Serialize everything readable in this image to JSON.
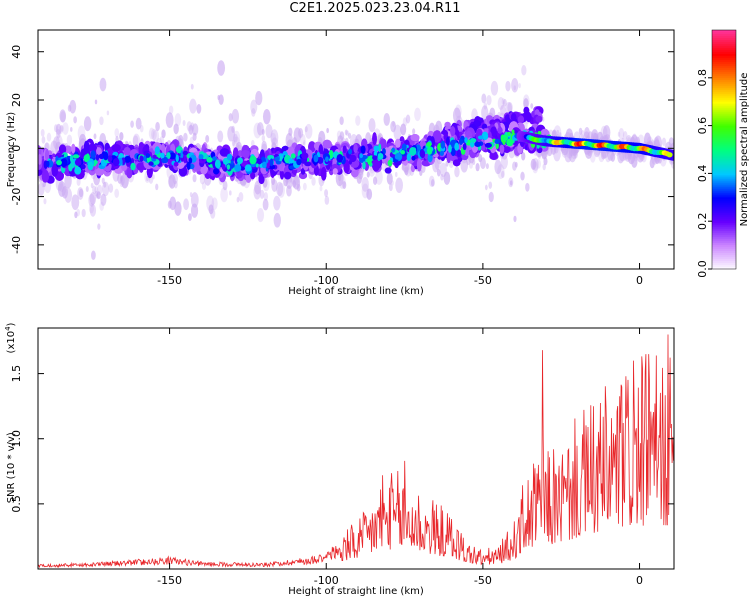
{
  "title": "C2E1.2025.023.23.04.R11",
  "chart_data": [
    {
      "type": "heatmap",
      "xlabel": "Height of straight line (km)",
      "ylabel": "Frequency (Hz)",
      "xlim": [
        -192,
        11
      ],
      "ylim": [
        -50,
        49
      ],
      "x_ticks": [
        -150,
        -100,
        -50,
        0
      ],
      "x_tick_labels": [
        "-150",
        "-100",
        "-50",
        "0"
      ],
      "y_ticks": [
        -40,
        -20,
        0,
        20,
        40
      ],
      "y_tick_labels": [
        "-40",
        "-20",
        "0",
        "20",
        "40"
      ],
      "colorbar": {
        "label": "Normalized spectral amplitude",
        "range": [
          0,
          1
        ],
        "ticks": [
          0.0,
          0.2,
          0.4,
          0.6,
          0.8
        ],
        "tick_labels": [
          "0.0",
          "0.2",
          "0.4",
          "0.6",
          "0.8"
        ],
        "colors": [
          "#ffffff",
          "#cc88ff",
          "#6600ff",
          "#0000ff",
          "#00c8ff",
          "#00ff80",
          "#40ff00",
          "#ffff00",
          "#ff8000",
          "#ff0000",
          "#ff3399"
        ]
      },
      "ridge": {
        "x": [
          -192,
          -170,
          -150,
          -130,
          -110,
          -90,
          -70,
          -50,
          -38,
          -30,
          -20,
          -10,
          0,
          11
        ],
        "freq": [
          -6,
          -5,
          -3,
          -7,
          -5,
          -4,
          -1,
          3,
          5,
          3,
          2,
          1,
          0,
          -3
        ],
        "amplitude": [
          0.25,
          0.25,
          0.22,
          0.22,
          0.25,
          0.28,
          0.3,
          0.35,
          0.5,
          0.7,
          0.9,
          0.9,
          0.85,
          0.7
        ]
      },
      "grid": false
    },
    {
      "type": "line",
      "xlabel": "Height of straight line (km)",
      "ylabel": "SNR (10 * v/v)",
      "y_multiplier_label": "(x10",
      "y_multiplier_exp": "4",
      "xlim": [
        -192,
        11
      ],
      "ylim": [
        0,
        1.85
      ],
      "x_ticks": [
        -150,
        -100,
        -50,
        0
      ],
      "x_tick_labels": [
        "-150",
        "-100",
        "-50",
        "0"
      ],
      "y_ticks": [
        0.5,
        1.0,
        1.5
      ],
      "y_tick_labels": [
        "0.5",
        "1.0",
        "1.5"
      ],
      "series": [
        {
          "color": "#e8262a",
          "envelope_x": [
            -192,
            -175,
            -160,
            -150,
            -140,
            -120,
            -105,
            -95,
            -88,
            -83,
            -78,
            -72,
            -65,
            -60,
            -55,
            -50,
            -45,
            -40,
            -37,
            -33,
            -31,
            -28,
            -24,
            -20,
            -15,
            -10,
            -5,
            0,
            5,
            11
          ],
          "envelope_y": [
            0.04,
            0.05,
            0.08,
            0.1,
            0.06,
            0.05,
            0.1,
            0.22,
            0.35,
            0.55,
            0.62,
            0.55,
            0.42,
            0.35,
            0.18,
            0.12,
            0.15,
            0.3,
            0.55,
            0.7,
            0.8,
            0.75,
            0.8,
            0.95,
            1.05,
            1.15,
            1.25,
            1.3,
            1.35,
            1.3
          ],
          "peaks": [
            [
              -31,
              1.68
            ],
            [
              -2,
              1.6
            ],
            [
              3,
              1.65
            ],
            [
              9,
              1.8
            ],
            [
              -75,
              0.83
            ],
            [
              -82,
              0.72
            ]
          ]
        }
      ]
    }
  ]
}
